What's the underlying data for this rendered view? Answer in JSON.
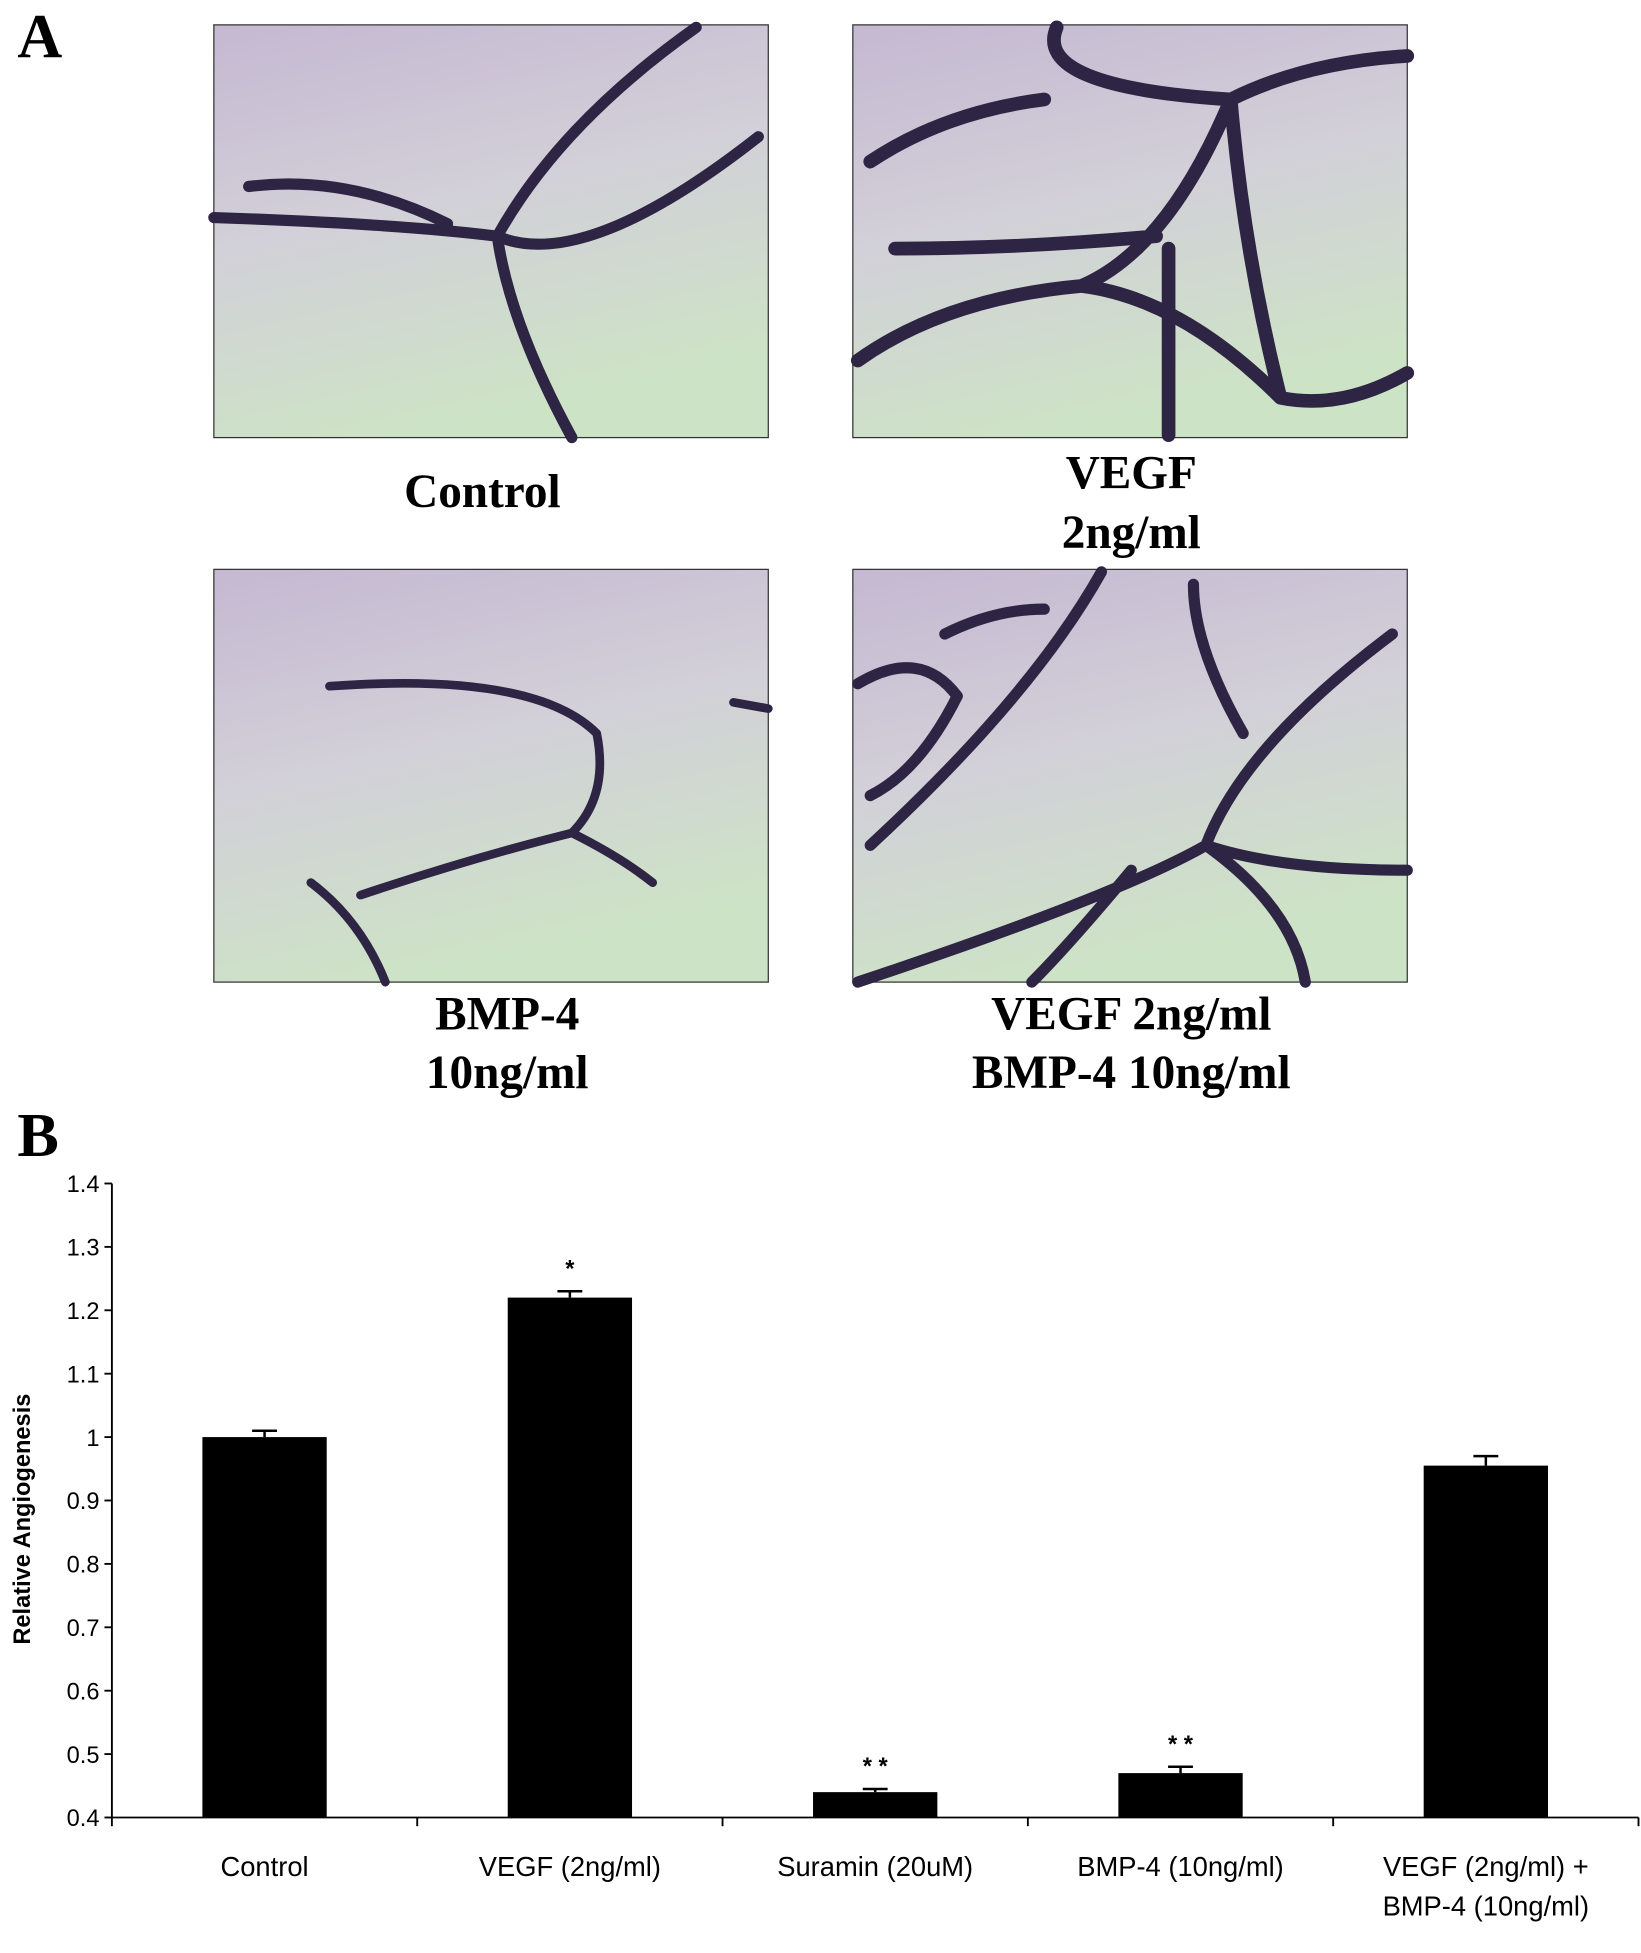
{
  "panel_a": {
    "label": "A",
    "images": [
      {
        "caption": [
          "Control"
        ]
      },
      {
        "caption": [
          "VEGF",
          "2ng/ml"
        ]
      },
      {
        "caption": [
          "BMP-4",
          "10ng/ml"
        ]
      },
      {
        "caption": [
          "VEGF 2ng/ml",
          "BMP-4 10ng/ml"
        ]
      }
    ]
  },
  "panel_b_label": "B",
  "chart_data": {
    "type": "bar",
    "ylabel": "Relative Angiogenesis",
    "categories": [
      "Control",
      "VEGF (2ng/ml)",
      "Suramin (20uM)",
      "BMP-4 (10ng/ml)",
      "VEGF (2ng/ml) + BMP-4 (10ng/ml)"
    ],
    "values": [
      1.0,
      1.22,
      0.44,
      0.47,
      0.955
    ],
    "errors": [
      0.01,
      0.01,
      0.005,
      0.01,
      0.015
    ],
    "significance": [
      null,
      "*",
      "* *",
      "* *",
      null
    ],
    "color": "#000000",
    "ylim": [
      0.4,
      1.4
    ],
    "yticks": [
      0.4,
      0.5,
      0.6,
      0.7,
      0.8,
      0.9,
      1,
      1.1,
      1.2,
      1.3,
      1.4
    ]
  }
}
